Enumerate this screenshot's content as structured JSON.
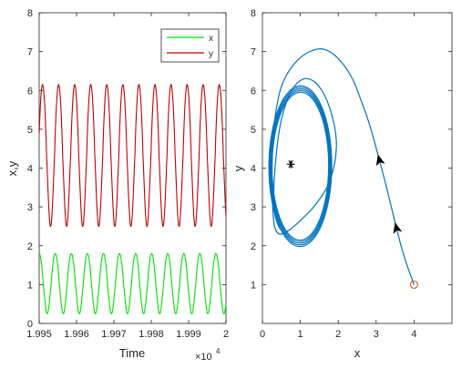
{
  "chart_data": [
    {
      "type": "line",
      "xlabel": "Time",
      "ylabel": "x,y",
      "x_multiplier_label": "×10",
      "x_multiplier_exponent": "4",
      "xlim": [
        19950,
        20000
      ],
      "ylim": [
        0,
        8
      ],
      "xticks": [
        19950,
        19960,
        19970,
        19980,
        19990,
        20000
      ],
      "xtick_labels": [
        "1.995",
        "1.996",
        "1.997",
        "1.998",
        "1.999",
        "2"
      ],
      "yticks": [
        0,
        1,
        2,
        3,
        4,
        5,
        6,
        7,
        8
      ],
      "legend_position": "top-right",
      "series": [
        {
          "name": "x",
          "color": "#00e000",
          "oscillation": {
            "min": 0.25,
            "max": 1.8,
            "period": 4.3,
            "first_peak": 19950.0
          }
        },
        {
          "name": "y",
          "color": "#c00000",
          "oscillation": {
            "min": 2.5,
            "max": 6.15,
            "period": 4.3,
            "first_peak": 19950.9
          }
        }
      ]
    },
    {
      "type": "line",
      "xlabel": "x",
      "ylabel": "y",
      "xlim": [
        0,
        5
      ],
      "ylim": [
        0,
        8
      ],
      "xticks": [
        0,
        1,
        2,
        3,
        4
      ],
      "yticks": [
        1,
        2,
        3,
        4,
        5,
        6,
        7,
        8
      ],
      "trajectory_color": "#0072bd",
      "start_point": {
        "x": 4.0,
        "y": 1.0,
        "marker": "circle",
        "color": "#d95319"
      },
      "equilibrium": {
        "x": 0.75,
        "y": 4.1,
        "marker": "asterisk"
      },
      "transient_path": [
        [
          4.0,
          1.0
        ],
        [
          3.85,
          1.4
        ],
        [
          3.7,
          1.85
        ],
        [
          3.55,
          2.4
        ],
        [
          3.4,
          3.0
        ],
        [
          3.25,
          3.6
        ],
        [
          3.1,
          4.15
        ],
        [
          2.95,
          4.7
        ],
        [
          2.8,
          5.2
        ],
        [
          2.6,
          5.75
        ],
        [
          2.4,
          6.25
        ],
        [
          2.15,
          6.65
        ],
        [
          1.85,
          6.95
        ],
        [
          1.55,
          7.07
        ],
        [
          1.25,
          7.0
        ],
        [
          0.95,
          6.8
        ],
        [
          0.7,
          6.5
        ],
        [
          0.5,
          6.1
        ],
        [
          0.38,
          5.6
        ],
        [
          0.3,
          5.0
        ],
        [
          0.26,
          4.3
        ],
        [
          0.25,
          3.6
        ],
        [
          0.27,
          3.0
        ],
        [
          0.32,
          2.5
        ],
        [
          0.45,
          2.3
        ],
        [
          0.7,
          2.4
        ],
        [
          1.0,
          2.65
        ],
        [
          1.35,
          3.0
        ],
        [
          1.7,
          3.5
        ],
        [
          1.9,
          4.1
        ],
        [
          1.95,
          4.7
        ],
        [
          1.85,
          5.3
        ],
        [
          1.65,
          5.85
        ],
        [
          1.4,
          6.2
        ],
        [
          1.1,
          6.3
        ],
        [
          0.8,
          6.05
        ],
        [
          0.6,
          5.6
        ],
        [
          0.45,
          5.0
        ],
        [
          0.35,
          4.2
        ],
        [
          0.3,
          3.4
        ],
        [
          0.33,
          2.8
        ],
        [
          0.45,
          2.45
        ]
      ],
      "limit_cycle": {
        "center_x": 1.0,
        "center_y": 4.05,
        "radius_x": 0.82,
        "radius_y": 2.05,
        "loops": 5
      },
      "arrows": [
        {
          "x": 3.55,
          "y": 2.4,
          "direction": "up"
        },
        {
          "x": 3.1,
          "y": 4.15,
          "direction": "up"
        }
      ]
    }
  ]
}
